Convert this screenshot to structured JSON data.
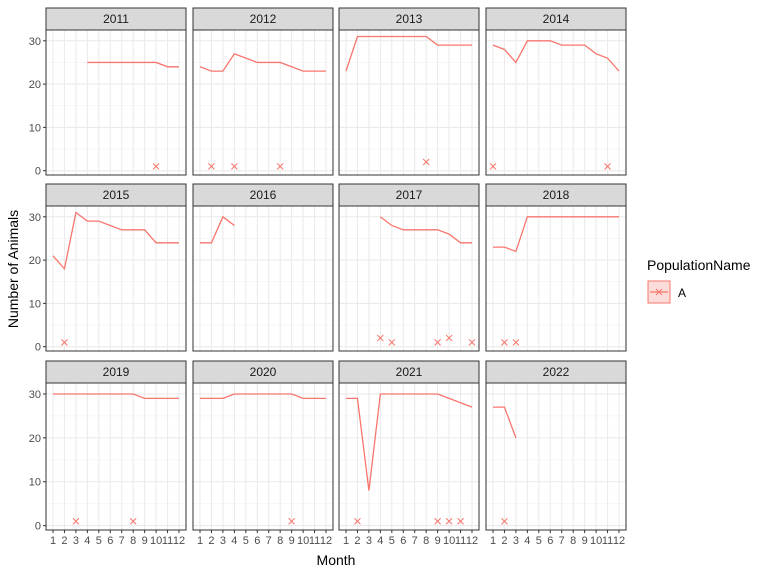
{
  "chart_data": {
    "type": "line",
    "layout": "facet_wrap",
    "ncol": 4,
    "xlabel": "Month",
    "ylabel": "Number of Animals",
    "x_ticks": [
      "1",
      "2",
      "3",
      "4",
      "5",
      "6",
      "7",
      "8",
      "9",
      "10",
      "11",
      "12"
    ],
    "y_ticks": [
      0,
      10,
      20,
      30
    ],
    "ylim": [
      -1,
      32.5
    ],
    "grid": true,
    "color": "#F8766D",
    "legend": {
      "title": "PopulationName",
      "position": "right",
      "entries": [
        {
          "label": "A",
          "color": "#F8766D"
        }
      ]
    },
    "panels": [
      {
        "year": "2011",
        "line": [
          [
            4,
            25
          ],
          [
            5,
            25
          ],
          [
            6,
            25
          ],
          [
            7,
            25
          ],
          [
            8,
            25
          ],
          [
            9,
            25
          ],
          [
            10,
            25
          ],
          [
            11,
            24
          ],
          [
            12,
            24
          ]
        ],
        "points": [
          [
            10,
            1
          ]
        ]
      },
      {
        "year": "2012",
        "line": [
          [
            1,
            24
          ],
          [
            2,
            23
          ],
          [
            3,
            23
          ],
          [
            4,
            27
          ],
          [
            5,
            26
          ],
          [
            6,
            25
          ],
          [
            7,
            25
          ],
          [
            8,
            25
          ],
          [
            9,
            24
          ],
          [
            10,
            23
          ],
          [
            11,
            23
          ],
          [
            12,
            23
          ]
        ],
        "points": [
          [
            2,
            1
          ],
          [
            4,
            1
          ],
          [
            8,
            1
          ]
        ]
      },
      {
        "year": "2013",
        "line": [
          [
            1,
            23
          ],
          [
            2,
            31
          ],
          [
            3,
            31
          ],
          [
            4,
            31
          ],
          [
            5,
            31
          ],
          [
            6,
            31
          ],
          [
            7,
            31
          ],
          [
            8,
            31
          ],
          [
            9,
            29
          ],
          [
            10,
            29
          ],
          [
            11,
            29
          ],
          [
            12,
            29
          ]
        ],
        "points": [
          [
            8,
            2
          ]
        ]
      },
      {
        "year": "2014",
        "line": [
          [
            1,
            29
          ],
          [
            2,
            28
          ],
          [
            3,
            25
          ],
          [
            4,
            30
          ],
          [
            5,
            30
          ],
          [
            6,
            30
          ],
          [
            7,
            29
          ],
          [
            8,
            29
          ],
          [
            9,
            29
          ],
          [
            10,
            27
          ],
          [
            11,
            26
          ],
          [
            12,
            23
          ]
        ],
        "points": [
          [
            1,
            1
          ],
          [
            11,
            1
          ]
        ]
      },
      {
        "year": "2015",
        "line": [
          [
            1,
            21
          ],
          [
            2,
            18
          ],
          [
            3,
            31
          ],
          [
            4,
            29
          ],
          [
            5,
            29
          ],
          [
            6,
            28
          ],
          [
            7,
            27
          ],
          [
            8,
            27
          ],
          [
            9,
            27
          ],
          [
            10,
            24
          ],
          [
            11,
            24
          ],
          [
            12,
            24
          ]
        ],
        "points": [
          [
            2,
            1
          ]
        ]
      },
      {
        "year": "2016",
        "line": [
          [
            1,
            24
          ],
          [
            2,
            24
          ],
          [
            3,
            30
          ],
          [
            4,
            28
          ]
        ],
        "points": []
      },
      {
        "year": "2017",
        "line": [
          [
            4,
            30
          ],
          [
            5,
            28
          ],
          [
            6,
            27
          ],
          [
            7,
            27
          ],
          [
            8,
            27
          ],
          [
            9,
            27
          ],
          [
            10,
            26
          ],
          [
            11,
            24
          ],
          [
            12,
            24
          ]
        ],
        "points": [
          [
            4,
            2
          ],
          [
            5,
            1
          ],
          [
            9,
            1
          ],
          [
            10,
            2
          ],
          [
            12,
            1
          ]
        ]
      },
      {
        "year": "2018",
        "line": [
          [
            1,
            23
          ],
          [
            2,
            23
          ],
          [
            3,
            22
          ],
          [
            4,
            30
          ],
          [
            5,
            30
          ],
          [
            6,
            30
          ],
          [
            7,
            30
          ],
          [
            8,
            30
          ],
          [
            9,
            30
          ],
          [
            10,
            30
          ],
          [
            11,
            30
          ],
          [
            12,
            30
          ]
        ],
        "points": [
          [
            2,
            1
          ],
          [
            3,
            1
          ]
        ]
      },
      {
        "year": "2019",
        "line": [
          [
            1,
            30
          ],
          [
            2,
            30
          ],
          [
            3,
            30
          ],
          [
            4,
            30
          ],
          [
            5,
            30
          ],
          [
            6,
            30
          ],
          [
            7,
            30
          ],
          [
            8,
            30
          ],
          [
            9,
            29
          ],
          [
            10,
            29
          ],
          [
            11,
            29
          ],
          [
            12,
            29
          ]
        ],
        "points": [
          [
            3,
            1
          ],
          [
            8,
            1
          ]
        ]
      },
      {
        "year": "2020",
        "line": [
          [
            1,
            29
          ],
          [
            2,
            29
          ],
          [
            3,
            29
          ],
          [
            4,
            30
          ],
          [
            5,
            30
          ],
          [
            6,
            30
          ],
          [
            7,
            30
          ],
          [
            8,
            30
          ],
          [
            9,
            30
          ],
          [
            10,
            29
          ],
          [
            11,
            29
          ],
          [
            12,
            29
          ]
        ],
        "points": [
          [
            9,
            1
          ]
        ]
      },
      {
        "year": "2021",
        "line": [
          [
            1,
            29
          ],
          [
            2,
            29
          ],
          [
            3,
            8
          ],
          [
            4,
            30
          ],
          [
            5,
            30
          ],
          [
            6,
            30
          ],
          [
            7,
            30
          ],
          [
            8,
            30
          ],
          [
            9,
            30
          ],
          [
            10,
            29
          ],
          [
            11,
            28
          ],
          [
            12,
            27
          ]
        ],
        "points": [
          [
            2,
            1
          ],
          [
            9,
            1
          ],
          [
            10,
            1
          ],
          [
            11,
            1
          ]
        ]
      },
      {
        "year": "2022",
        "line": [
          [
            1,
            27
          ],
          [
            2,
            27
          ],
          [
            3,
            20
          ]
        ],
        "points": [
          [
            2,
            1
          ]
        ]
      }
    ]
  }
}
